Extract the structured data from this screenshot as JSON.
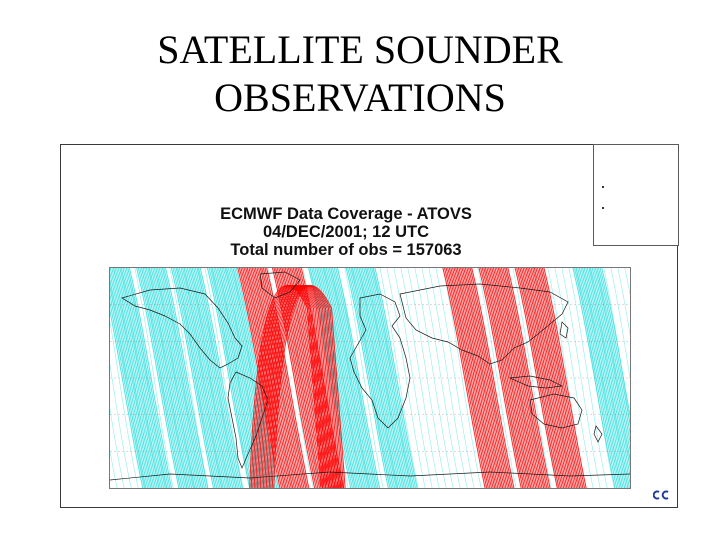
{
  "slide": {
    "title_line1": "SATELLITE SOUNDER",
    "title_line2": "OBSERVATIONS"
  },
  "figure": {
    "title_lines": [
      "ECMWF Data Coverage  - ATOVS",
      "04/DEC/2001; 12 UTC",
      "Total number of obs  = 157063"
    ],
    "colors": {
      "series_1": "#ff0000",
      "series_2": "#33dede",
      "coastline": "#1a1a1a"
    },
    "map": {
      "projection": "equirectangular",
      "lon_range": [
        -180,
        180
      ],
      "lat_range": [
        -90,
        90
      ],
      "swaths_series_2_center_lon": [
        -162,
        -137,
        -113,
        -88,
        -18,
        8,
        165
      ],
      "swaths_series_1_center_lon": [
        -67,
        -43,
        75,
        100,
        125
      ]
    },
    "logo_icon": "ecmwf-logo-icon"
  }
}
